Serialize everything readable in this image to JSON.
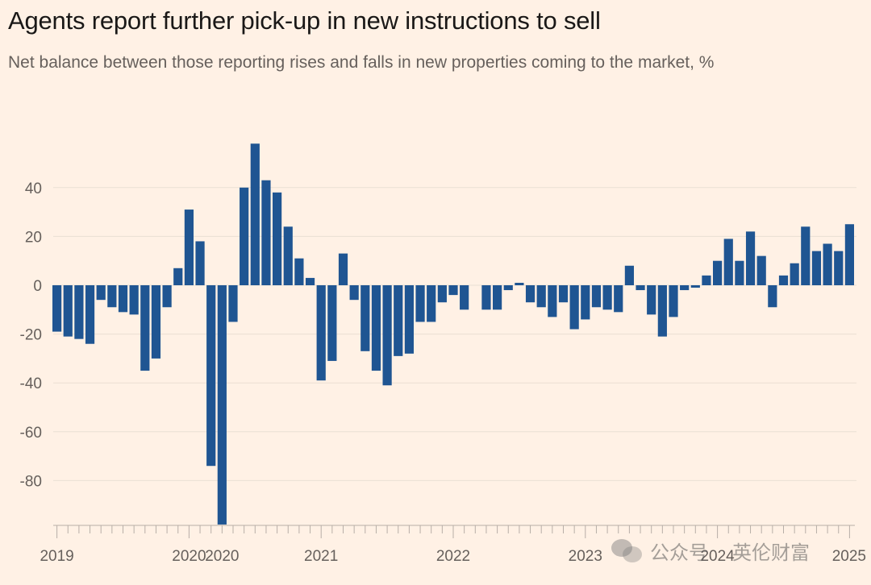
{
  "title": "Agents report further pick-up in new instructions to sell",
  "subtitle": "Net balance between those reporting rises and falls in new properties coming to the market, %",
  "watermark": {
    "account": "公众号",
    "name": "英伦财富",
    "icon": "wechat-icon"
  },
  "colors": {
    "bar": "#1f5592",
    "background": "#fff1e5",
    "grid": "#eadfd4",
    "axis": "#b7aea7"
  },
  "chart_data": {
    "type": "bar",
    "title": "Agents report further pick-up in new instructions to sell",
    "subtitle": "Net balance between those reporting rises and falls in new properties coming to the market, %",
    "xlabel": "",
    "ylabel": "",
    "ylim": [
      -98,
      60
    ],
    "yticks": [
      40,
      20,
      0,
      -20,
      -40,
      -60,
      -80
    ],
    "grid": true,
    "x_labels": [
      {
        "label": "2019",
        "index": 0
      },
      {
        "label": "2020",
        "index": 12
      },
      {
        "label": "2020",
        "index": 15
      },
      {
        "label": "2021",
        "index": 24
      },
      {
        "label": "2022",
        "index": 36
      },
      {
        "label": "2023",
        "index": 48
      },
      {
        "label": "2024",
        "index": 60
      },
      {
        "label": "2025",
        "index": 72
      }
    ],
    "values": [
      -19,
      -21,
      -22,
      -24,
      -6,
      -9,
      -11,
      -12,
      -35,
      -30,
      -9,
      7,
      31,
      18,
      -74,
      -98,
      -15,
      40,
      58,
      43,
      38,
      24,
      11,
      3,
      -39,
      -31,
      13,
      -6,
      -27,
      -35,
      -41,
      -29,
      -28,
      -15,
      -15,
      -7,
      -4,
      -10,
      null,
      -10,
      -10,
      -2,
      1,
      -7,
      -9,
      -13,
      -7,
      -18,
      -14,
      -9,
      -10,
      -11,
      8,
      -2,
      -12,
      -21,
      -13,
      -2,
      -1,
      4,
      10,
      19,
      10,
      22,
      12,
      -9,
      4,
      9,
      24,
      14,
      17,
      14,
      25
    ]
  }
}
